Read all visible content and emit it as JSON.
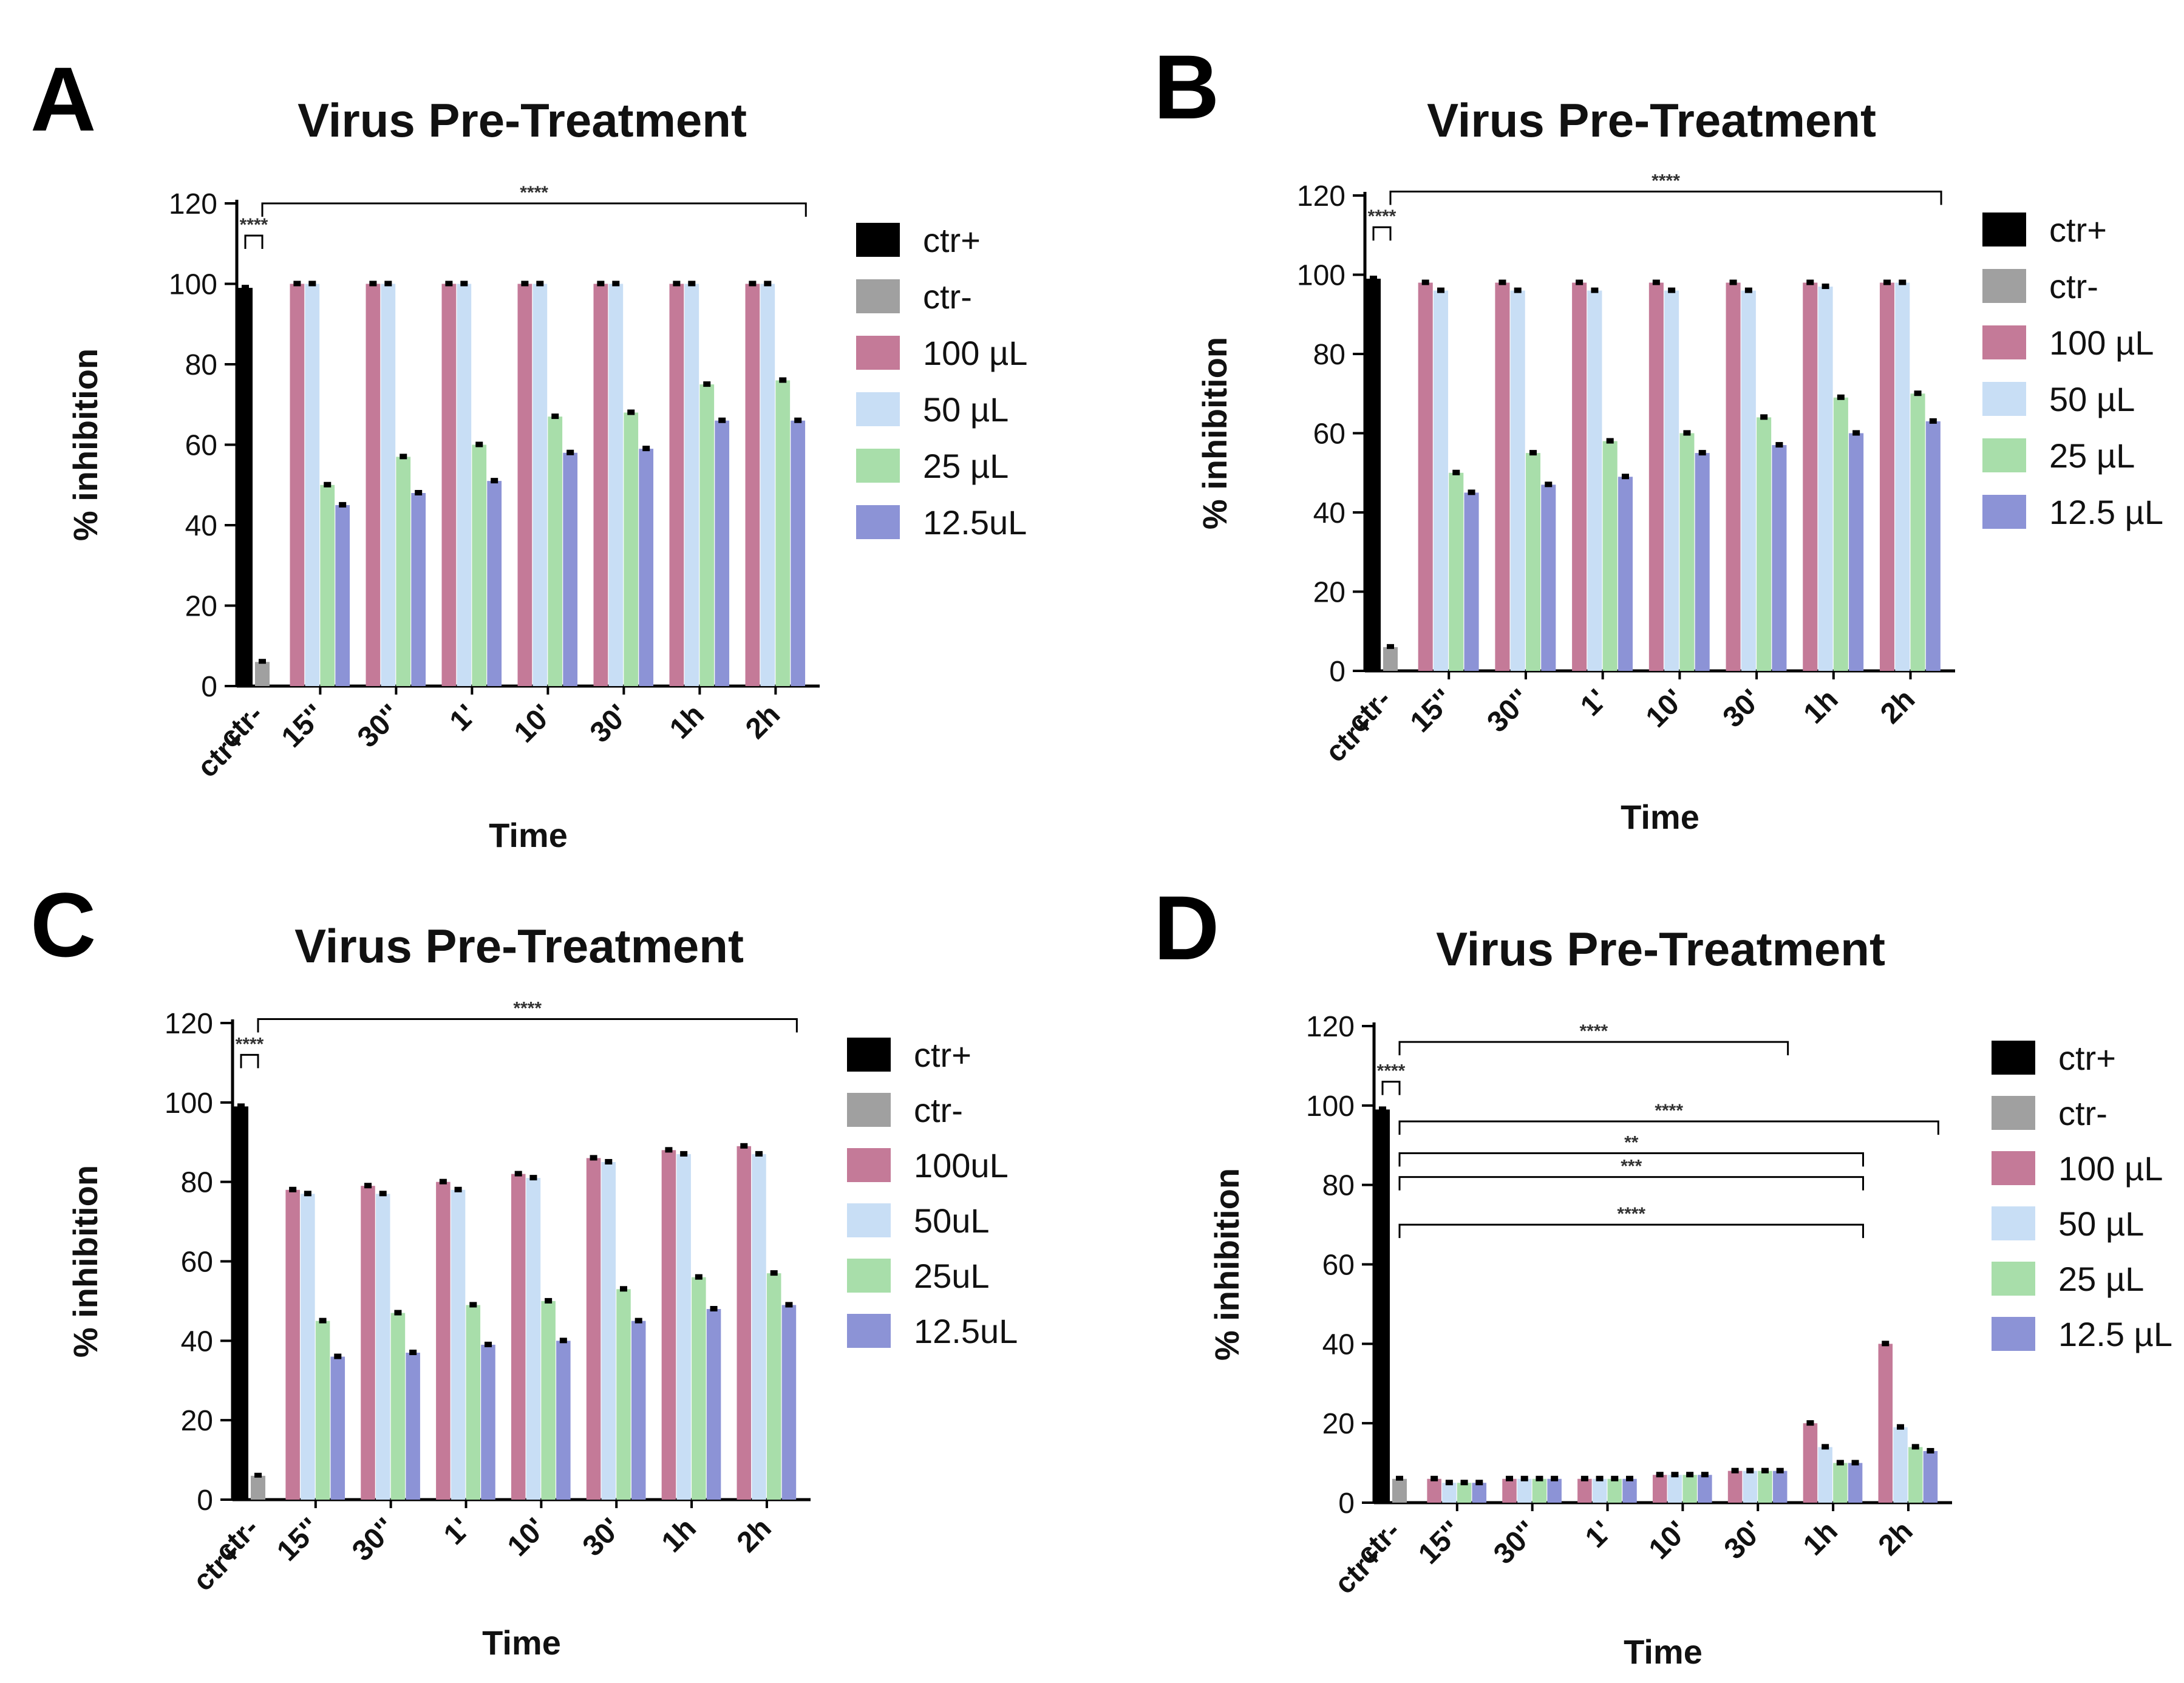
{
  "series_colors": {
    "ctr+": "#000000",
    "ctr-": "#a0a0a0",
    "100": "#c47a98",
    "50": "#c8def5",
    "25": "#a8deaa",
    "12.5": "#8c93d6"
  },
  "chart_data": [
    {
      "panel": "A",
      "type": "bar",
      "title": "Virus Pre-Treatment",
      "xlabel": "Time",
      "ylabel": "% inhibition",
      "ylim": [
        0,
        120
      ],
      "yticks": [
        "0",
        "20",
        "40",
        "60",
        "80",
        "100",
        "120"
      ],
      "categories": [
        "15''",
        "30''",
        "1'",
        "10'",
        "30'",
        "1h",
        "2h"
      ],
      "controls": [
        {
          "label": "ctr+",
          "value": 99
        },
        {
          "label": "ctr-",
          "value": 6
        }
      ],
      "legend": [
        "ctr+",
        "ctr-",
        "100 µL",
        "50 µL",
        "25 µL",
        "12.5uL"
      ],
      "series": [
        {
          "name": "100 µL",
          "values": [
            100,
            100,
            100,
            100,
            100,
            100,
            100
          ]
        },
        {
          "name": "50 µL",
          "values": [
            100,
            100,
            100,
            100,
            100,
            100,
            100
          ]
        },
        {
          "name": "25 µL",
          "values": [
            50,
            57,
            60,
            67,
            68,
            75,
            76
          ]
        },
        {
          "name": "12.5uL",
          "values": [
            45,
            48,
            51,
            58,
            59,
            66,
            66
          ]
        }
      ],
      "significance": [
        {
          "label": "****",
          "from": "ctr+",
          "to": "ctr-",
          "y": 112
        },
        {
          "label": "****",
          "from": "ctr-",
          "to": "2h",
          "y": 120
        }
      ]
    },
    {
      "panel": "B",
      "type": "bar",
      "title": "Virus Pre-Treatment",
      "xlabel": "Time",
      "ylabel": "% inhibition",
      "ylim": [
        0,
        120
      ],
      "yticks": [
        "0",
        "20",
        "40",
        "60",
        "80",
        "100",
        "120"
      ],
      "categories": [
        "15''",
        "30''",
        "1'",
        "10'",
        "30'",
        "1h",
        "2h"
      ],
      "controls": [
        {
          "label": "ctr+",
          "value": 99
        },
        {
          "label": "ctr-",
          "value": 6
        }
      ],
      "legend": [
        "ctr+",
        "ctr-",
        "100 µL",
        "50 µL",
        "25 µL",
        "12.5 µL"
      ],
      "series": [
        {
          "name": "100 µL",
          "values": [
            98,
            98,
            98,
            98,
            98,
            98,
            98
          ]
        },
        {
          "name": "50 µL",
          "values": [
            96,
            96,
            96,
            96,
            96,
            97,
            98
          ]
        },
        {
          "name": "25 µL",
          "values": [
            50,
            55,
            58,
            60,
            64,
            69,
            70
          ]
        },
        {
          "name": "12.5 µL",
          "values": [
            45,
            47,
            49,
            55,
            57,
            60,
            63
          ]
        }
      ],
      "significance": [
        {
          "label": "****",
          "from": "ctr+",
          "to": "ctr-",
          "y": 112
        },
        {
          "label": "****",
          "from": "ctr-",
          "to": "2h",
          "y": 121
        }
      ]
    },
    {
      "panel": "C",
      "type": "bar",
      "title": "Virus Pre-Treatment",
      "xlabel": "Time",
      "ylabel": "% inhibition",
      "ylim": [
        0,
        120
      ],
      "yticks": [
        "0",
        "20",
        "40",
        "60",
        "80",
        "100",
        "120"
      ],
      "categories": [
        "15''",
        "30''",
        "1'",
        "10'",
        "30'",
        "1h",
        "2h"
      ],
      "controls": [
        {
          "label": "ctr+",
          "value": 99
        },
        {
          "label": "ctr-",
          "value": 6
        }
      ],
      "legend": [
        "ctr+",
        "ctr-",
        "100uL",
        "50uL",
        "25uL",
        "12.5uL"
      ],
      "series": [
        {
          "name": "100uL",
          "values": [
            78,
            79,
            80,
            82,
            86,
            88,
            89
          ]
        },
        {
          "name": "50uL",
          "values": [
            77,
            77,
            78,
            81,
            85,
            87,
            87
          ]
        },
        {
          "name": "25uL",
          "values": [
            45,
            47,
            49,
            50,
            53,
            56,
            57
          ]
        },
        {
          "name": "12.5uL",
          "values": [
            36,
            37,
            39,
            40,
            45,
            48,
            49
          ]
        }
      ],
      "significance": [
        {
          "label": "****",
          "from": "ctr+",
          "to": "ctr-",
          "y": 112
        },
        {
          "label": "****",
          "from": "ctr-",
          "to": "2h",
          "y": 121
        }
      ]
    },
    {
      "panel": "D",
      "type": "bar",
      "title": "Virus Pre-Treatment",
      "xlabel": "Time",
      "ylabel": "% inhibition",
      "ylim": [
        0,
        120
      ],
      "yticks": [
        "0",
        "20",
        "40",
        "60",
        "80",
        "100",
        "120"
      ],
      "categories": [
        "15''",
        "30''",
        "1'",
        "10'",
        "30'",
        "1h",
        "2h"
      ],
      "controls": [
        {
          "label": "ctr+",
          "value": 99
        },
        {
          "label": "ctr-",
          "value": 6
        }
      ],
      "legend": [
        "ctr+",
        "ctr-",
        "100 µL",
        "50 µL",
        "25 µL",
        "12.5 µL"
      ],
      "series": [
        {
          "name": "100 µL",
          "values": [
            6,
            6,
            6,
            7,
            8,
            20,
            40
          ]
        },
        {
          "name": "50 µL",
          "values": [
            5,
            6,
            6,
            7,
            8,
            14,
            19
          ]
        },
        {
          "name": "25 µL",
          "values": [
            5,
            6,
            6,
            7,
            8,
            10,
            14
          ]
        },
        {
          "name": "12.5 µL",
          "values": [
            5,
            6,
            6,
            7,
            8,
            10,
            13
          ]
        }
      ],
      "significance": [
        {
          "label": "****",
          "from": "ctr+",
          "to": "ctr-",
          "y": 106
        },
        {
          "label": "****",
          "from": "ctr-",
          "to": "30'",
          "y": 116
        },
        {
          "label": "****",
          "from": "ctr-",
          "to": "2h",
          "y": 96
        },
        {
          "label": "**",
          "from": "ctr-",
          "to": "1h",
          "y": 88
        },
        {
          "label": "***",
          "from": "ctr-",
          "to": "1h",
          "y": 82
        },
        {
          "label": "****",
          "from": "ctr-",
          "to": "1h",
          "y": 70
        }
      ]
    }
  ]
}
